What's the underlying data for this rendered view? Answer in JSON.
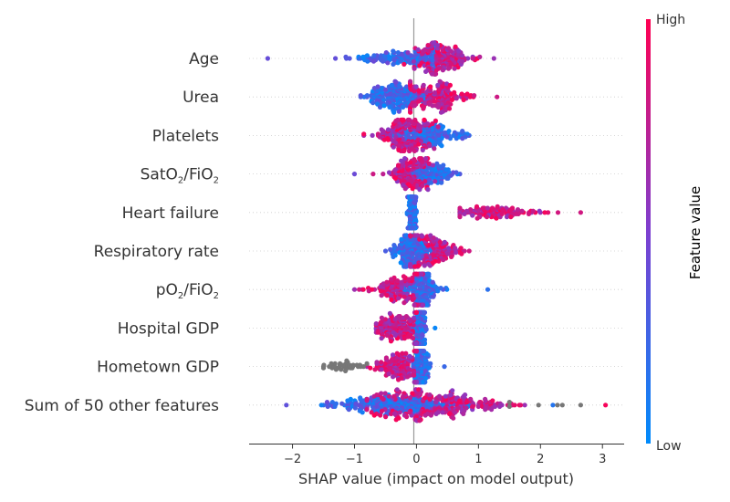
{
  "chart_data": {
    "type": "scatter",
    "subtype": "shap-beeswarm",
    "title": "",
    "xlabel": "SHAP value (impact on model output)",
    "ylabel": "",
    "xlim": [
      -2.7,
      3.35
    ],
    "xticks": [
      -2,
      -1,
      0,
      1,
      2,
      3
    ],
    "xtick_labels": [
      "−2",
      "−1",
      "0",
      "1",
      "2",
      "3"
    ],
    "grid": false,
    "features": [
      {
        "label": "Age",
        "html": "Age",
        "low": {
          "min": -2.4,
          "max": 0.3,
          "center": -0.05,
          "spread": 0.55,
          "count": 190
        },
        "high": {
          "min": -0.2,
          "max": 1.25,
          "center": 0.45,
          "spread": 0.25,
          "count": 170
        }
      },
      {
        "label": "Urea",
        "html": "Urea",
        "low": {
          "min": -0.9,
          "max": 0.15,
          "center": -0.35,
          "spread": 0.22,
          "count": 190
        },
        "high": {
          "min": -0.1,
          "max": 1.3,
          "center": 0.35,
          "spread": 0.28,
          "count": 170
        }
      },
      {
        "label": "Platelets",
        "html": "Platelets",
        "low": {
          "min": -0.5,
          "max": 0.85,
          "center": 0.2,
          "spread": 0.25,
          "count": 160
        },
        "high": {
          "min": -0.85,
          "max": 0.35,
          "center": -0.2,
          "spread": 0.22,
          "count": 170
        }
      },
      {
        "label": "SatO2/FiO2",
        "html": "SatO<tspan font-size='10' dy='4'>2</tspan><tspan dy='-4'>/FiO</tspan><tspan font-size='10' dy='4'>2</tspan>",
        "low": {
          "min": -1.0,
          "max": 0.7,
          "center": 0.25,
          "spread": 0.18,
          "count": 120
        },
        "high": {
          "min": -0.7,
          "max": 0.3,
          "center": -0.1,
          "spread": 0.15,
          "count": 140
        }
      },
      {
        "label": "Heart failure",
        "html": "Heart failure",
        "low": {
          "min": -0.15,
          "max": 0.0,
          "center": -0.07,
          "spread": 0.03,
          "count": 200
        },
        "high": {
          "min": 0.7,
          "max": 2.65,
          "center": 1.3,
          "spread": 0.4,
          "count": 110
        }
      },
      {
        "label": "Respiratory rate",
        "html": "Respiratory rate",
        "low": {
          "min": -0.5,
          "max": 0.25,
          "center": -0.1,
          "spread": 0.15,
          "count": 170
        },
        "high": {
          "min": -0.1,
          "max": 0.85,
          "center": 0.3,
          "spread": 0.2,
          "count": 150
        }
      },
      {
        "label": "pO2/FiO2",
        "html": "pO<tspan font-size='10' dy='4'>2</tspan><tspan dy='-4'>/FiO</tspan><tspan font-size='10' dy='4'>2</tspan>",
        "low": {
          "min": -0.2,
          "max": 1.15,
          "center": 0.1,
          "spread": 0.15,
          "count": 150
        },
        "high": {
          "min": -1.0,
          "max": 0.1,
          "center": -0.25,
          "spread": 0.25,
          "count": 160
        }
      },
      {
        "label": "Hospital GDP",
        "html": "Hospital GDP",
        "low": {
          "min": -0.05,
          "max": 0.3,
          "center": 0.07,
          "spread": 0.04,
          "count": 150
        },
        "high": {
          "min": -0.65,
          "max": 0.0,
          "center": -0.3,
          "spread": 0.18,
          "count": 160
        }
      },
      {
        "label": "Hometown GDP",
        "html": "Hometown GDP",
        "low": {
          "min": -0.05,
          "max": 0.45,
          "center": 0.07,
          "spread": 0.06,
          "count": 150
        },
        "high": {
          "min": -0.8,
          "max": 0.0,
          "center": -0.3,
          "spread": 0.2,
          "count": 160
        },
        "missing": {
          "min": -1.5,
          "max": -0.8,
          "center": -1.2,
          "spread": 0.18,
          "count": 40
        }
      },
      {
        "label": "Sum of 50 other features",
        "html": "Sum of 50 other features",
        "low": {
          "min": -2.1,
          "max": 2.2,
          "center": -0.25,
          "spread": 0.55,
          "count": 260
        },
        "high": {
          "min": -0.8,
          "max": 3.05,
          "center": 0.4,
          "spread": 0.55,
          "count": 240
        },
        "missing": {
          "min": 1.5,
          "max": 2.65,
          "center": 2.0,
          "spread": 0.3,
          "count": 6
        }
      }
    ],
    "colorbar": {
      "label": "Feature value",
      "high_label": "High",
      "low_label": "Low",
      "low_color": "#008bfb",
      "mid_color": "#7d3fd0",
      "high_color": "#ff0052"
    },
    "missing_color": "#777777",
    "zero_line": true
  }
}
